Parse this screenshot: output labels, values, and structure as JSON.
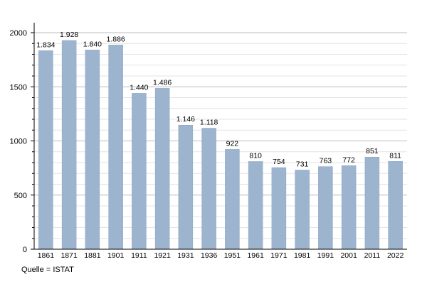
{
  "chart_data": {
    "type": "bar",
    "categories": [
      "1861",
      "1871",
      "1881",
      "1901",
      "1911",
      "1921",
      "1931",
      "1936",
      "1951",
      "1961",
      "1971",
      "1981",
      "1991",
      "2001",
      "2011",
      "2022"
    ],
    "values": [
      1834,
      1928,
      1840,
      1886,
      1440,
      1486,
      1146,
      1118,
      922,
      810,
      754,
      731,
      763,
      772,
      851,
      811
    ],
    "value_labels": [
      "1.834",
      "1.928",
      "1.840",
      "1.886",
      "1.440",
      "1.486",
      "1.146",
      "1.118",
      "922",
      "810",
      "754",
      "731",
      "763",
      "772",
      "851",
      "811"
    ],
    "ylim": [
      0,
      2000
    ],
    "yticks": [
      0,
      500,
      1000,
      1500,
      2000
    ],
    "minor_step": 100,
    "grid": true,
    "bar_color": "#9db4cf",
    "bar_stroke": "#8aa3c0",
    "grid_color": "#cccccc",
    "source": "Quelle = ISTAT"
  }
}
